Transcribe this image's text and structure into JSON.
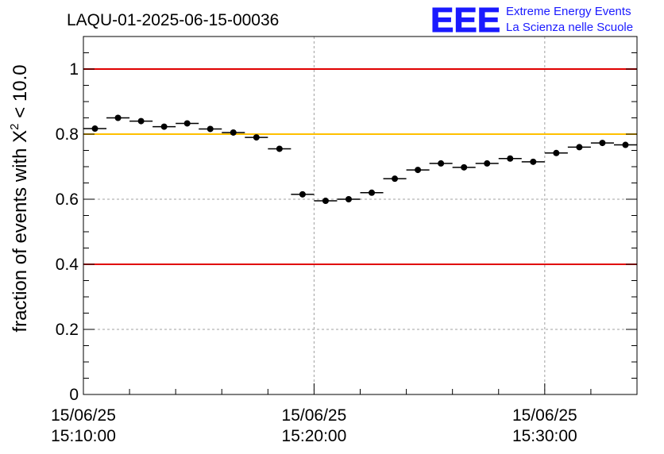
{
  "chart_data": {
    "type": "scatter",
    "title": "LAQU-01-2025-06-15-00036",
    "ylabel_prefix": "fraction of events with ",
    "ylabel_symbol": "X",
    "ylabel_exponent": "2",
    "ylabel_suffix": " < 10.0",
    "xlabel": "",
    "x_range_minutes": [
      0,
      24
    ],
    "ylim": [
      0,
      1.1
    ],
    "y_ticks": [
      0,
      0.2,
      0.4,
      0.6,
      0.8,
      1
    ],
    "y_tick_labels": [
      "0",
      "0.2",
      "0.4",
      "0.6",
      "0.8",
      "1"
    ],
    "x_major_ticks": [
      {
        "minute": 0,
        "date": "15/06/25",
        "time": "15:10:00"
      },
      {
        "minute": 10,
        "date": "15/06/25",
        "time": "15:20:00"
      },
      {
        "minute": 20,
        "date": "15/06/25",
        "time": "15:30:00"
      }
    ],
    "bin_width_minutes": 1,
    "points": [
      {
        "minute": 0.5,
        "y": 0.817
      },
      {
        "minute": 1.5,
        "y": 0.85
      },
      {
        "minute": 2.5,
        "y": 0.84
      },
      {
        "minute": 3.5,
        "y": 0.823
      },
      {
        "minute": 4.5,
        "y": 0.833
      },
      {
        "minute": 5.5,
        "y": 0.816
      },
      {
        "minute": 6.5,
        "y": 0.805
      },
      {
        "minute": 7.5,
        "y": 0.79
      },
      {
        "minute": 8.5,
        "y": 0.755
      },
      {
        "minute": 9.5,
        "y": 0.615
      },
      {
        "minute": 10.5,
        "y": 0.595
      },
      {
        "minute": 11.5,
        "y": 0.6
      },
      {
        "minute": 12.5,
        "y": 0.62
      },
      {
        "minute": 13.5,
        "y": 0.663
      },
      {
        "minute": 14.5,
        "y": 0.69
      },
      {
        "minute": 15.5,
        "y": 0.71
      },
      {
        "minute": 16.5,
        "y": 0.698
      },
      {
        "minute": 17.5,
        "y": 0.71
      },
      {
        "minute": 18.5,
        "y": 0.725
      },
      {
        "minute": 19.5,
        "y": 0.715
      },
      {
        "minute": 20.5,
        "y": 0.742
      },
      {
        "minute": 21.5,
        "y": 0.76
      },
      {
        "minute": 22.5,
        "y": 0.773
      },
      {
        "minute": 23.5,
        "y": 0.767
      }
    ],
    "reference_lines": [
      {
        "y": 1.0,
        "color": "#e00000"
      },
      {
        "y": 0.8,
        "color": "#ffc000"
      },
      {
        "y": 0.4,
        "color": "#e00000"
      }
    ],
    "grid": true
  },
  "logo": {
    "letters": "EEE",
    "line1": "Extreme Energy Events",
    "line2": "La Scienza nelle Scuole",
    "color": "#1a1aff"
  }
}
